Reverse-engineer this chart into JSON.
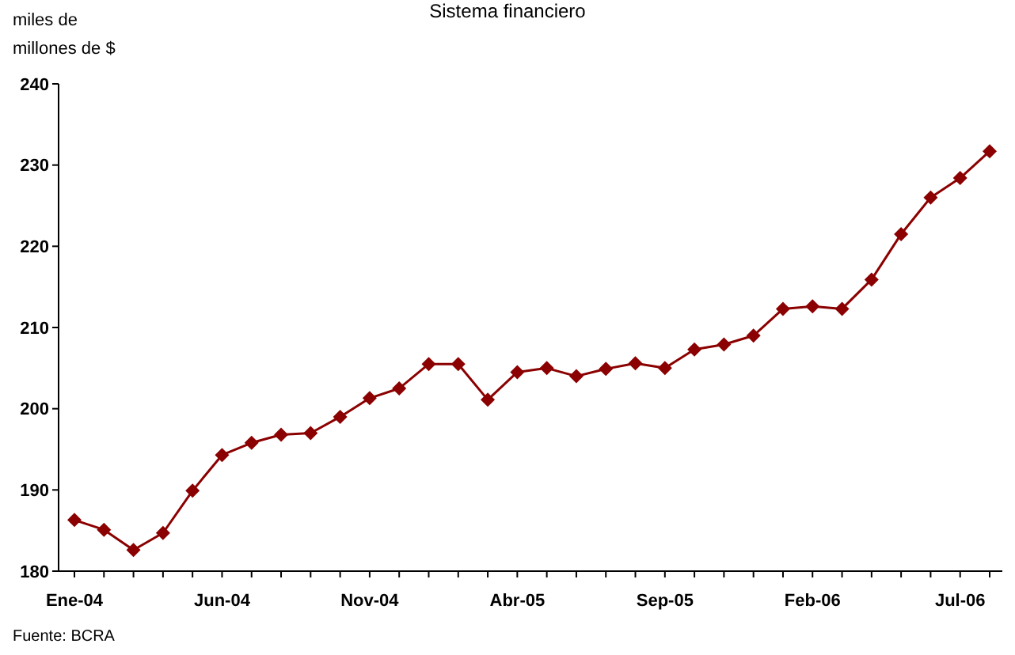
{
  "chart_data": {
    "type": "line",
    "title": "Sistema financiero",
    "ylabel": "miles de millones de $",
    "categories": [
      "Ene-04",
      null,
      null,
      null,
      null,
      "Jun-04",
      null,
      null,
      null,
      null,
      "Nov-04",
      null,
      null,
      null,
      null,
      "Abr-05",
      null,
      null,
      null,
      null,
      "Sep-05",
      null,
      null,
      null,
      null,
      "Feb-06",
      null,
      null,
      null,
      null,
      "Jul-06",
      null
    ],
    "series": [
      {
        "color": "#8b0000",
        "values": [
          186.3,
          185.1,
          182.6,
          184.7,
          189.9,
          194.3,
          195.8,
          196.8,
          197.0,
          199.0,
          201.3,
          202.5,
          205.5,
          205.5,
          201.1,
          204.5,
          205.0,
          204.0,
          204.9,
          205.6,
          205.0,
          207.3,
          207.9,
          209.0,
          212.3,
          212.6,
          212.3,
          215.9,
          221.5,
          226.0,
          228.4,
          231.7
        ]
      }
    ],
    "ylim": [
      180,
      240
    ],
    "yticks": [
      180,
      190,
      200,
      210,
      220,
      230,
      240
    ],
    "grid": false,
    "legend": false,
    "marker": "diamond",
    "line_style": "solid",
    "annotations": [
      "Fuente: BCRA"
    ]
  }
}
